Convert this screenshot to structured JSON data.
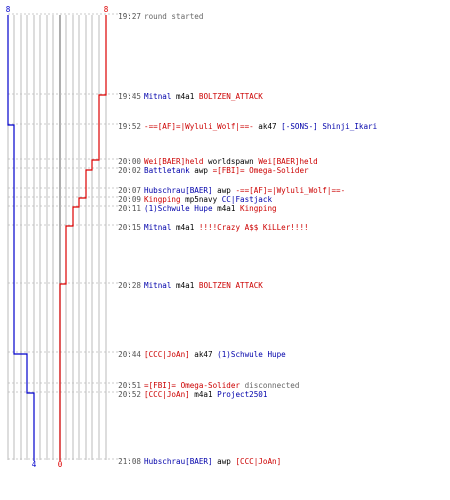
{
  "colors": {
    "blue_team": "#0000cc",
    "red_team": "#dd0000",
    "grid": "#aaaaaa",
    "separator": "#bbbbbb",
    "time_text": "#555555"
  },
  "scores": {
    "blue_start": "8",
    "red_start": "8",
    "blue_end": "4",
    "red_end": "0"
  },
  "events": [
    {
      "time": "19:27",
      "parts": [
        {
          "t": "round started",
          "c": "gray"
        }
      ]
    },
    {
      "time": "19:45",
      "parts": [
        {
          "t": "Mitnal",
          "c": "blue"
        },
        {
          "t": " m4a1 ",
          "c": "black"
        },
        {
          "t": "BOLTZEN_ATTACK",
          "c": "red"
        }
      ]
    },
    {
      "time": "19:52",
      "parts": [
        {
          "t": "-==[AF]=|Wyluli_Wolf|==-",
          "c": "red"
        },
        {
          "t": " ak47 ",
          "c": "black"
        },
        {
          "t": "[-SONS-] Shinji_Ikari",
          "c": "blue"
        }
      ]
    },
    {
      "time": "20:00",
      "parts": [
        {
          "t": "Wei[BAER]held",
          "c": "red"
        },
        {
          "t": " worldspawn ",
          "c": "black"
        },
        {
          "t": "Wei[BAER]held",
          "c": "red"
        }
      ]
    },
    {
      "time": "20:02",
      "parts": [
        {
          "t": "Battletank",
          "c": "blue"
        },
        {
          "t": " awp ",
          "c": "black"
        },
        {
          "t": "=[FBI]= Omega-Solider",
          "c": "red"
        }
      ]
    },
    {
      "time": "20:07",
      "parts": [
        {
          "t": "Hubschrau[BAER]",
          "c": "blue"
        },
        {
          "t": " awp ",
          "c": "black"
        },
        {
          "t": "-==[AF]=|Wyluli_Wolf|==-",
          "c": "red"
        }
      ]
    },
    {
      "time": "20:09",
      "parts": [
        {
          "t": "Kingping",
          "c": "red"
        },
        {
          "t": " mp5navy ",
          "c": "black"
        },
        {
          "t": "CC|Fastjack",
          "c": "blue"
        }
      ]
    },
    {
      "time": "20:11",
      "parts": [
        {
          "t": "(1)Schwule Hupe",
          "c": "blue"
        },
        {
          "t": " m4a1 ",
          "c": "black"
        },
        {
          "t": "Kingping",
          "c": "red"
        }
      ]
    },
    {
      "time": "20:15",
      "parts": [
        {
          "t": "Mitnal",
          "c": "blue"
        },
        {
          "t": " m4a1 ",
          "c": "black"
        },
        {
          "t": "!!!!Crazy A$$ KiLLer!!!!",
          "c": "red"
        }
      ]
    },
    {
      "time": "20:28",
      "parts": [
        {
          "t": "Mitnal",
          "c": "blue"
        },
        {
          "t": " m4a1 ",
          "c": "black"
        },
        {
          "t": "BOLTZEN ATTACK",
          "c": "red"
        }
      ]
    },
    {
      "time": "20:44",
      "parts": [
        {
          "t": "[CCC|JoAn]",
          "c": "red"
        },
        {
          "t": " ak47 ",
          "c": "black"
        },
        {
          "t": "(1)Schwule Hupe",
          "c": "blue"
        }
      ]
    },
    {
      "time": "20:51",
      "parts": [
        {
          "t": "=[FBI]= Omega-Solider",
          "c": "red"
        },
        {
          "t": " disconnected",
          "c": "gray"
        }
      ]
    },
    {
      "time": "20:52",
      "parts": [
        {
          "t": "[CCC|JoAn]",
          "c": "red"
        },
        {
          "t": " m4a1 ",
          "c": "black"
        },
        {
          "t": "Project2501",
          "c": "blue"
        }
      ]
    },
    {
      "time": "21:08",
      "parts": [
        {
          "t": "Hubschrau[BAER]",
          "c": "blue"
        },
        {
          "t": " awp ",
          "c": "black"
        },
        {
          "t": "[CCC|JoAn]",
          "c": "red"
        }
      ]
    }
  ]
}
